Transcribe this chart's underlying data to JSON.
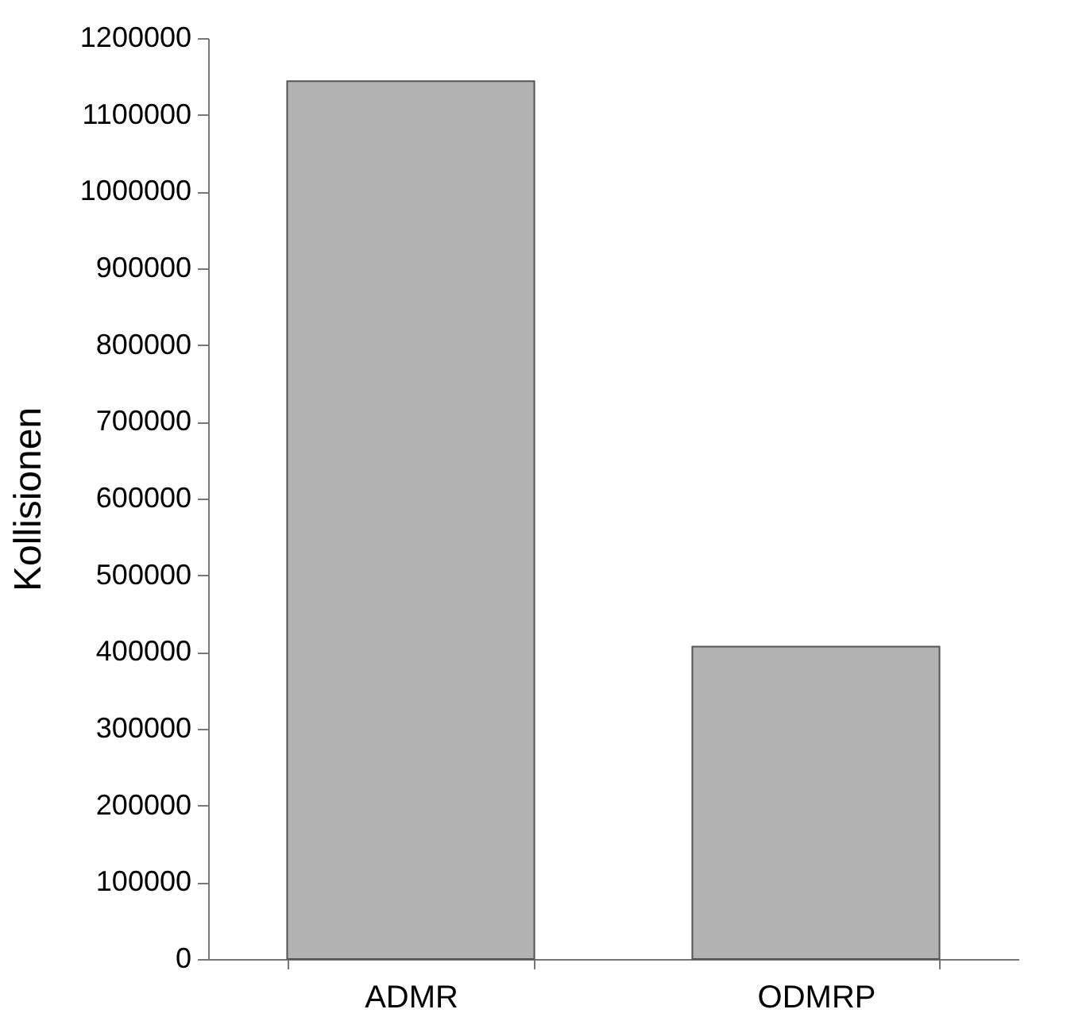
{
  "chart_data": {
    "type": "bar",
    "ylabel": "Kollisionen",
    "categories": [
      "ADMR",
      "ODMRP"
    ],
    "values": [
      1144000,
      407000
    ],
    "color": "#b3b3b3",
    "ylim": [
      0,
      1200000
    ],
    "yticks": [
      0,
      100000,
      200000,
      300000,
      400000,
      500000,
      600000,
      700000,
      800000,
      900000,
      1000000,
      1100000,
      1200000
    ],
    "grid": false
  }
}
